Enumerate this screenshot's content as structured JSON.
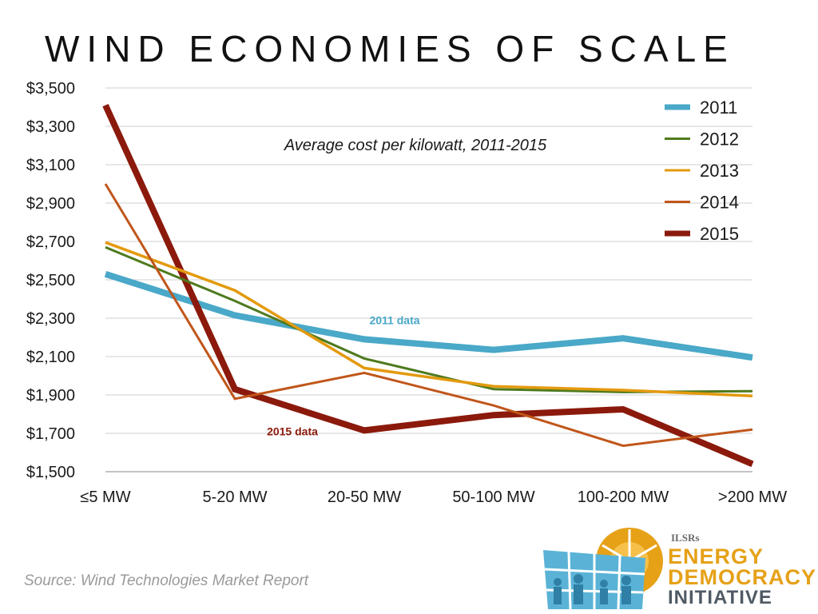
{
  "slide": {
    "title": "WIND ECONOMIES OF SCALE",
    "source": "Source: Wind Technologies Market Report"
  },
  "logo": {
    "org": "ILSRs",
    "line1": "ENERGY",
    "line2": "DEMOCRACY",
    "line3": "INITIATIVE",
    "colors": {
      "sun": "#e6a117",
      "panel": "#5ab3d6",
      "text_dark": "#505a64"
    }
  },
  "chart_data": {
    "type": "line",
    "title": "Average cost per kilowatt, 2011-2015",
    "categories": [
      "≤5 MW",
      "5-20 MW",
      "20-50 MW",
      "50-100 MW",
      "100-200 MW",
      ">200 MW"
    ],
    "ylim": [
      1500,
      3500
    ],
    "yticks": [
      1500,
      1700,
      1900,
      2100,
      2300,
      2500,
      2700,
      2900,
      3100,
      3300,
      3500
    ],
    "ytick_labels": [
      "$1,500",
      "$1,700",
      "$1,900",
      "$2,100",
      "$2,300",
      "$2,500",
      "$2,700",
      "$2,900",
      "$3,100",
      "$3,300",
      "$3,500"
    ],
    "grid": true,
    "legend_position": "top-right",
    "series": [
      {
        "name": "2011",
        "color": "#4aa8c8",
        "values": [
          2530,
          2315,
          2190,
          2135,
          2195,
          2095
        ]
      },
      {
        "name": "2012",
        "color": "#4e7a1e",
        "values": [
          2670,
          2390,
          2090,
          1930,
          1915,
          1920
        ]
      },
      {
        "name": "2013",
        "color": "#e39a0e",
        "values": [
          2695,
          2445,
          2040,
          1945,
          1925,
          1895
        ]
      },
      {
        "name": "2014",
        "color": "#c0561a",
        "values": [
          3000,
          1880,
          2015,
          1845,
          1635,
          1720
        ]
      },
      {
        "name": "2015",
        "color": "#8b1a0c",
        "values": [
          3410,
          1930,
          1715,
          1795,
          1825,
          1540
        ]
      }
    ],
    "annotations": [
      {
        "text": "2011 data",
        "color": "#4aa8c8",
        "x_index": 2,
        "y": 2290
      },
      {
        "text": "2015 data",
        "color": "#8b1a0c",
        "x_index": 1,
        "y": 1710
      }
    ]
  }
}
